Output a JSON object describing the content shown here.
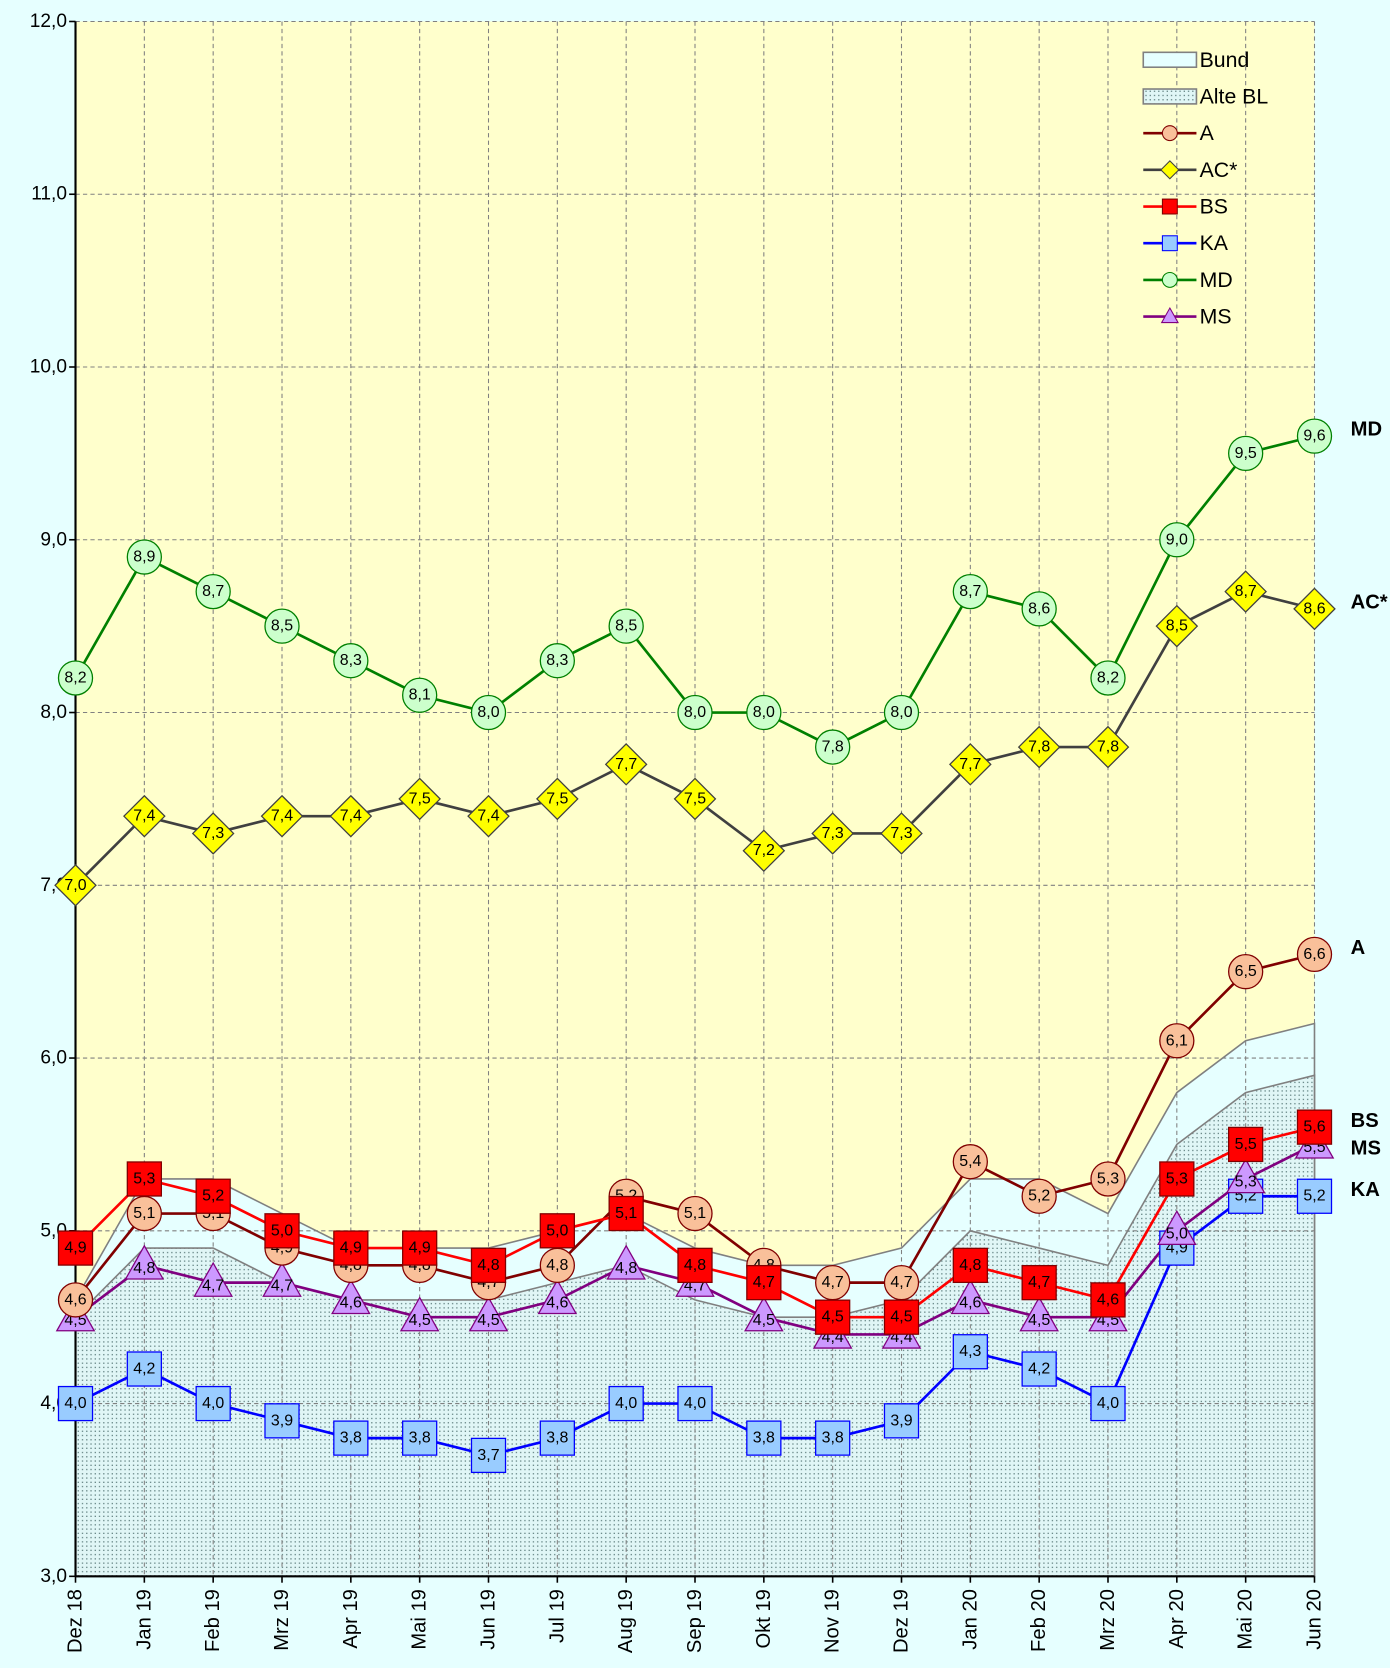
{
  "chart_data": {
    "type": "line",
    "categories": [
      "Dez 18",
      "Jan 19",
      "Feb 19",
      "Mrz 19",
      "Apr 19",
      "Mai 19",
      "Jun 19",
      "Jul 19",
      "Aug 19",
      "Sep 19",
      "Okt 19",
      "Nov 19",
      "Dez 19",
      "Jan 20",
      "Feb 20",
      "Mrz 20",
      "Apr 20",
      "Mai 20",
      "Jun 20"
    ],
    "ylim": [
      3,
      12
    ],
    "yticks": [
      {
        "value": 3,
        "label": "3,0"
      },
      {
        "value": 4,
        "label": "4,0"
      },
      {
        "value": 5,
        "label": "5,0"
      },
      {
        "value": 6,
        "label": "6,0"
      },
      {
        "value": 7,
        "label": "7,0"
      },
      {
        "value": 8,
        "label": "8,0"
      },
      {
        "value": 9,
        "label": "9,0"
      },
      {
        "value": 10,
        "label": "10,0"
      },
      {
        "value": 11,
        "label": "11,0"
      },
      {
        "value": 12,
        "label": "12,0"
      }
    ],
    "grid": true,
    "legend": "upper right",
    "areas": [
      {
        "name": "Bund",
        "color": "#e6ffff",
        "values": [
          4.6,
          5.3,
          5.3,
          5.1,
          4.9,
          4.9,
          4.9,
          5.0,
          5.1,
          4.9,
          4.8,
          4.8,
          4.9,
          5.3,
          5.3,
          5.1,
          5.8,
          6.1,
          6.2
        ]
      },
      {
        "name": "Alte BL",
        "color": "#d6f2f2",
        "values": [
          4.5,
          4.9,
          4.9,
          4.7,
          4.6,
          4.6,
          4.6,
          4.7,
          4.8,
          4.6,
          4.5,
          4.5,
          4.6,
          5.0,
          4.9,
          4.8,
          5.5,
          5.8,
          5.9
        ]
      }
    ],
    "series": [
      {
        "name": "A",
        "color": "#800000",
        "fill": "#f9c09a",
        "marker": "circle",
        "values": [
          4.6,
          5.1,
          5.1,
          4.9,
          4.8,
          4.8,
          4.7,
          4.8,
          5.2,
          5.1,
          4.8,
          4.7,
          4.7,
          5.4,
          5.2,
          5.3,
          6.1,
          6.5,
          6.6
        ],
        "value_labels": [
          "4,6",
          "5,1",
          "5,1",
          "4,9",
          "4,8",
          "4,8",
          "4,7",
          "4,8",
          "5,2",
          "5,1",
          "4,8",
          "4,7",
          "4,7",
          "5,4",
          "5,2",
          "5,3",
          "6,1",
          "6,5",
          "6,6"
        ]
      },
      {
        "name": "AC*",
        "color": "#404040",
        "fill": "#ffff00",
        "marker": "diamond",
        "values": [
          7.0,
          7.4,
          7.3,
          7.4,
          7.4,
          7.5,
          7.4,
          7.5,
          7.7,
          7.5,
          7.2,
          7.3,
          7.3,
          7.7,
          7.8,
          7.8,
          8.5,
          8.7,
          8.6
        ],
        "value_labels": [
          "7,0",
          "7,4",
          "7,3",
          "7,4",
          "7,4",
          "7,5",
          "7,4",
          "7,5",
          "7,7",
          "7,5",
          "7,2",
          "7,3",
          "7,3",
          "7,7",
          "7,8",
          "7,8",
          "8,5",
          "8,7",
          "8,6"
        ]
      },
      {
        "name": "BS",
        "color": "#ff0000",
        "fill": "#ff0000",
        "marker": "square",
        "values": [
          4.9,
          5.3,
          5.2,
          5.0,
          4.9,
          4.9,
          4.8,
          5.0,
          5.1,
          4.8,
          4.7,
          4.5,
          4.5,
          4.8,
          4.7,
          4.6,
          5.3,
          5.5,
          5.6
        ],
        "value_labels": [
          "4,9",
          "5,3",
          "5,2",
          "5,0",
          "4,9",
          "4,9",
          "4,8",
          "5,0",
          "5,1",
          "4,8",
          "4,7",
          "4,5",
          "4,5",
          "4,8",
          "4,7",
          "4,6",
          "5,3",
          "5,5",
          "5,6"
        ]
      },
      {
        "name": "KA",
        "color": "#0000ff",
        "fill": "#99ccff",
        "marker": "square",
        "values": [
          4.0,
          4.2,
          4.0,
          3.9,
          3.8,
          3.8,
          3.7,
          3.8,
          4.0,
          4.0,
          3.8,
          3.8,
          3.9,
          4.3,
          4.2,
          4.0,
          4.9,
          5.2,
          5.2
        ],
        "value_labels": [
          "4,0",
          "4,2",
          "4,0",
          "3,9",
          "3,8",
          "3,8",
          "3,7",
          "3,8",
          "4,0",
          "4,0",
          "3,8",
          "3,8",
          "3,9",
          "4,3",
          "4,2",
          "4,0",
          "4,9",
          "5,2",
          "5,2"
        ]
      },
      {
        "name": "MD",
        "color": "#008000",
        "fill": "#ccffcc",
        "marker": "circle",
        "values": [
          8.2,
          8.9,
          8.7,
          8.5,
          8.3,
          8.1,
          8.0,
          8.3,
          8.5,
          8.0,
          8.0,
          7.8,
          8.0,
          8.7,
          8.6,
          8.2,
          9.0,
          9.5,
          9.6
        ],
        "value_labels": [
          "8,2",
          "8,9",
          "8,7",
          "8,5",
          "8,3",
          "8,1",
          "8,0",
          "8,3",
          "8,5",
          "8,0",
          "8,0",
          "7,8",
          "8,0",
          "8,7",
          "8,6",
          "8,2",
          "9,0",
          "9,5",
          "9,6"
        ]
      },
      {
        "name": "MS",
        "color": "#800080",
        "fill": "#cc99ff",
        "marker": "triangle",
        "values": [
          4.5,
          4.8,
          4.7,
          4.7,
          4.6,
          4.5,
          4.5,
          4.6,
          4.8,
          4.7,
          4.5,
          4.4,
          4.4,
          4.6,
          4.5,
          4.5,
          5.0,
          5.3,
          5.5
        ],
        "value_labels": [
          "4,5",
          "4,8",
          "4,7",
          "4,7",
          "4,6",
          "4,5",
          "4,5",
          "4,6",
          "4,8",
          "4,7",
          "4,5",
          "4,4",
          "4,4",
          "4,6",
          "4,5",
          "4,5",
          "5,0",
          "5,3",
          "5,5"
        ]
      }
    ]
  }
}
